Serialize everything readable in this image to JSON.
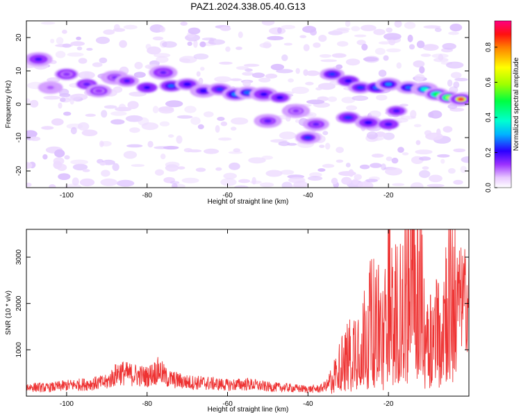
{
  "title": "PAZ1.2024.338.05.40.G13",
  "chart_data": [
    {
      "type": "heatmap",
      "xlabel": "Height of straight line (km)",
      "ylabel": "Frequency (Hz)",
      "xlim": [
        -110,
        0
      ],
      "ylim": [
        -25,
        25
      ],
      "xticks": [
        -100,
        -80,
        -60,
        -40,
        -20
      ],
      "yticks": [
        -20,
        -10,
        0,
        10,
        20
      ],
      "colorbar": {
        "label": "Normalized spectral amplitude",
        "range": [
          0,
          0.95
        ],
        "ticks": [
          0.0,
          0.2,
          0.4,
          0.6,
          0.8
        ]
      },
      "features": [
        {
          "x": -107,
          "y": 13.5,
          "amp": 0.2
        },
        {
          "x": -104,
          "y": 5,
          "amp": 0.12
        },
        {
          "x": -100,
          "y": 9,
          "amp": 0.15
        },
        {
          "x": -95,
          "y": 6,
          "amp": 0.18
        },
        {
          "x": -92,
          "y": 4,
          "amp": 0.14
        },
        {
          "x": -88,
          "y": 8,
          "amp": 0.16
        },
        {
          "x": -85,
          "y": 7,
          "amp": 0.2
        },
        {
          "x": -80,
          "y": 5,
          "amp": 0.22
        },
        {
          "x": -76,
          "y": 9.5,
          "amp": 0.18
        },
        {
          "x": -74,
          "y": 5.5,
          "amp": 0.28
        },
        {
          "x": -70,
          "y": 6,
          "amp": 0.22
        },
        {
          "x": -66,
          "y": 4,
          "amp": 0.22
        },
        {
          "x": -62,
          "y": 4.5,
          "amp": 0.25
        },
        {
          "x": -58,
          "y": 3,
          "amp": 0.3
        },
        {
          "x": -55,
          "y": 3.5,
          "amp": 0.28
        },
        {
          "x": -51,
          "y": 3,
          "amp": 0.22
        },
        {
          "x": -47,
          "y": 2,
          "amp": 0.22
        },
        {
          "x": -50,
          "y": -5,
          "amp": 0.18
        },
        {
          "x": -43,
          "y": -2,
          "amp": 0.15
        },
        {
          "x": -40,
          "y": -10,
          "amp": 0.25
        },
        {
          "x": -38,
          "y": -6,
          "amp": 0.18
        },
        {
          "x": -34,
          "y": 9,
          "amp": 0.25
        },
        {
          "x": -30,
          "y": 7,
          "amp": 0.22
        },
        {
          "x": -27,
          "y": 5,
          "amp": 0.25
        },
        {
          "x": -23,
          "y": 5,
          "amp": 0.28
        },
        {
          "x": -20,
          "y": 6,
          "amp": 0.3
        },
        {
          "x": -15,
          "y": 5,
          "amp": 0.28
        },
        {
          "x": -11,
          "y": 4.5,
          "amp": 0.4
        },
        {
          "x": -8,
          "y": 3,
          "amp": 0.52
        },
        {
          "x": -5,
          "y": 2,
          "amp": 0.65
        },
        {
          "x": -2,
          "y": 1.5,
          "amp": 0.95
        },
        {
          "x": -30,
          "y": -4,
          "amp": 0.25
        },
        {
          "x": -25,
          "y": -5.5,
          "amp": 0.22
        },
        {
          "x": -20,
          "y": -6,
          "amp": 0.2
        },
        {
          "x": -18,
          "y": -2,
          "amp": 0.2
        }
      ]
    },
    {
      "type": "line",
      "xlabel": "Height of straight line (km)",
      "ylabel": "SNR (10 * v/v)",
      "xlim": [
        -110,
        0
      ],
      "ylim": [
        0,
        3600
      ],
      "xticks": [
        -100,
        -80,
        -60,
        -40,
        -20
      ],
      "yticks": [
        1000,
        2000,
        3000
      ],
      "series": [
        {
          "color": "#ee3333",
          "x": [
            -110,
            -105,
            -100,
            -95,
            -90,
            -87,
            -85,
            -80,
            -77,
            -75,
            -70,
            -65,
            -60,
            -55,
            -50,
            -45,
            -40,
            -37,
            -35,
            -33,
            -31,
            -29,
            -27,
            -25,
            -23,
            -21,
            -20,
            -19,
            -17,
            -15,
            -14,
            -13,
            -11,
            -9,
            -7,
            -5,
            -3,
            -1,
            0
          ],
          "y": [
            200,
            180,
            230,
            260,
            300,
            520,
            480,
            420,
            560,
            380,
            300,
            280,
            240,
            260,
            200,
            180,
            150,
            160,
            250,
            500,
            800,
            1000,
            1200,
            1500,
            1700,
            1200,
            3200,
            1700,
            1800,
            2400,
            3600,
            2900,
            1500,
            1300,
            1500,
            2300,
            2100,
            2100,
            2050
          ]
        }
      ]
    }
  ]
}
